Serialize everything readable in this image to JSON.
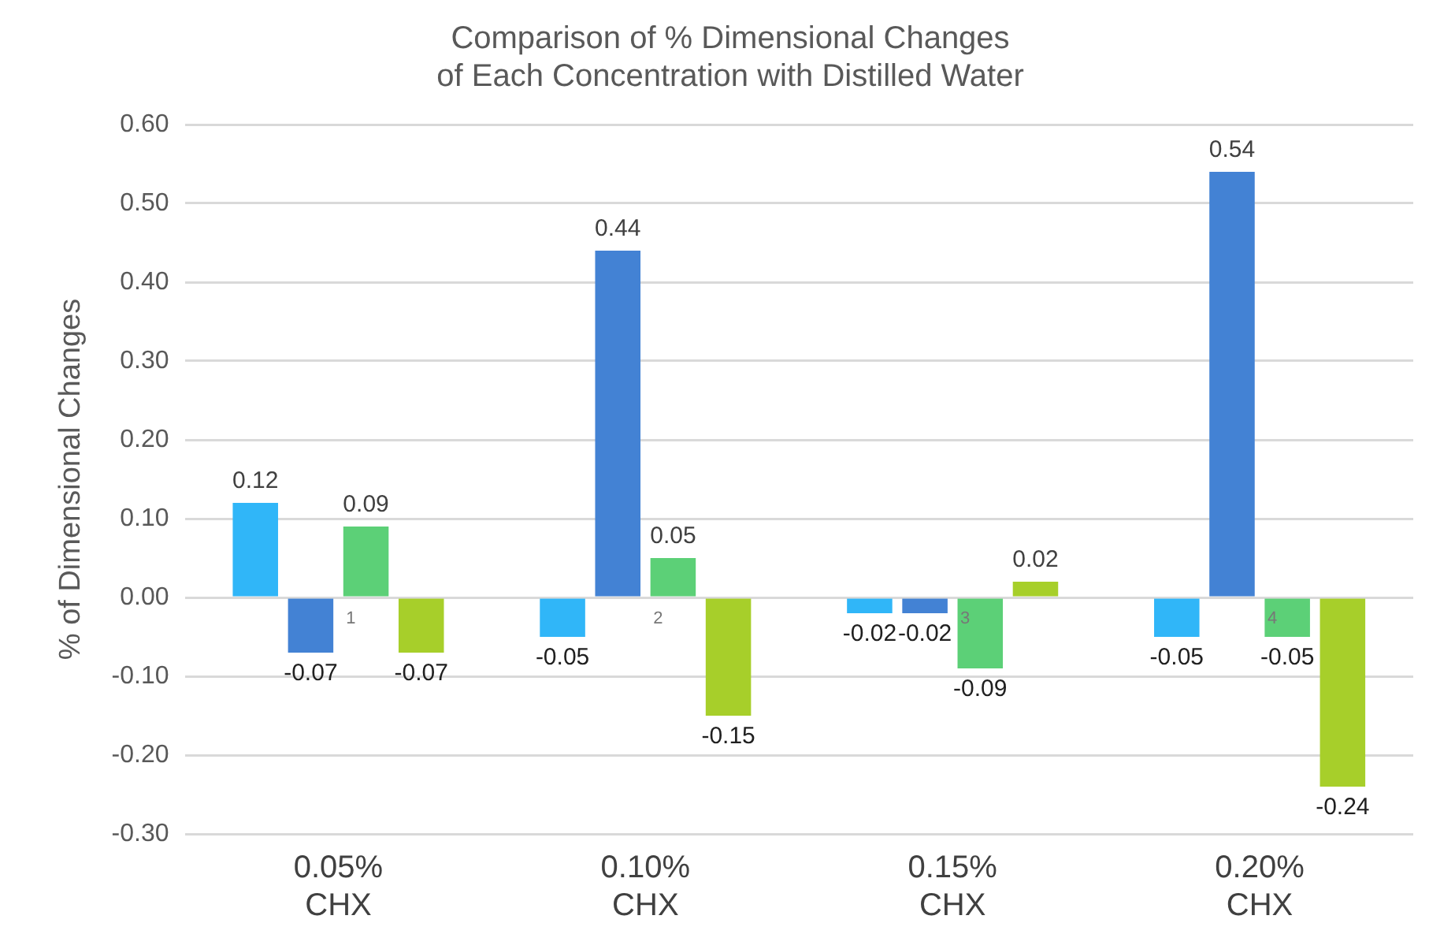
{
  "chart_data": {
    "type": "bar",
    "title": "Comparison of % Dimensional Changes of Each Concentration with Distilled Water",
    "ylabel": "% of Dimensional Changes",
    "categories": [
      "0.05% CHX",
      "0.10% CHX",
      "0.15% CHX",
      "0.20% CHX"
    ],
    "series": [
      {
        "color": "#30b6f8",
        "values": [
          0.12,
          -0.05,
          -0.02,
          -0.05
        ]
      },
      {
        "color": "#4382d4",
        "values": [
          -0.07,
          0.44,
          -0.02,
          0.54
        ]
      },
      {
        "color": "#5cd077",
        "values": [
          0.09,
          0.05,
          -0.09,
          -0.05
        ]
      },
      {
        "color": "#a7cf2a",
        "values": [
          -0.07,
          -0.15,
          0.02,
          -0.24
        ]
      }
    ],
    "ylim": [
      -0.3,
      0.6
    ],
    "yticks": [
      {
        "value": -0.3,
        "label": "-0.30"
      },
      {
        "value": -0.2,
        "label": "-0.20"
      },
      {
        "value": -0.1,
        "label": "-0.10"
      },
      {
        "value": 0,
        "label": "0.00"
      },
      {
        "value": 0.1,
        "label": "0.10"
      },
      {
        "value": 0.2,
        "label": "0.20"
      },
      {
        "value": 0.3,
        "label": "0.30"
      },
      {
        "value": 0.4,
        "label": "0.40"
      },
      {
        "value": 0.5,
        "label": "0.50"
      },
      {
        "value": 0.6,
        "label": "0.60"
      }
    ],
    "grid": "y",
    "legend": false,
    "data_labels": true,
    "annotations": [
      {
        "text": "1",
        "x": "0.05% CHX",
        "y": 0
      },
      {
        "text": "2",
        "x": "0.10% CHX",
        "y": 0
      },
      {
        "text": "3",
        "x": "0.15% CHX",
        "y": 0
      },
      {
        "text": "4",
        "x": "0.20% CHX",
        "y": 0
      }
    ]
  }
}
